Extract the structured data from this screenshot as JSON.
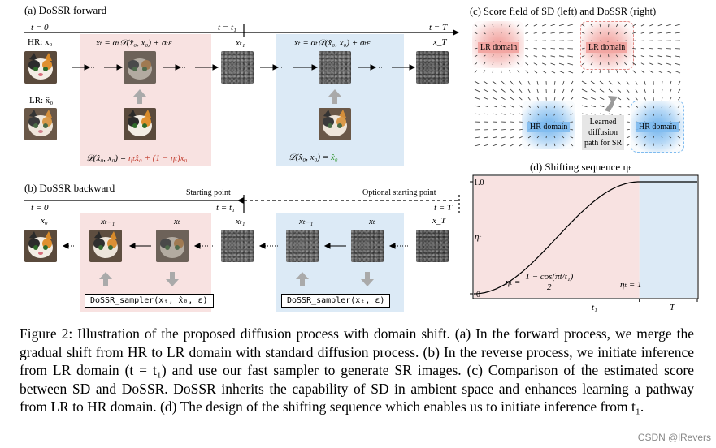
{
  "a": {
    "title": "(a) DoSSR forward",
    "t0": "t = 0",
    "tt1": "t = t₁",
    "tT": "t = T",
    "hr_label": "HR: x₀",
    "lr_label": "LR: x̂₀",
    "eq_top_left": "xₜ = αₜ𝒟(x̂₀, x₀) + σₜε",
    "eq_top_right": "xₜ = αₜ𝒟(x̂₀, x₀) + σₜε",
    "xt1": "xₜ₁",
    "xT": "x_T",
    "dots": "→ ··· →",
    "eq_bottom_left_lhs": "𝒟(x̂₀, x₀) = ",
    "eq_bottom_left_rhs": "ηₜx̂₀ + (1 − ηₜ)x₀",
    "eq_bottom_right_lhs": "𝒟(x̂₀, x₀) = ",
    "eq_bottom_right_rhs": "x̂₀"
  },
  "b": {
    "title": "(b) DoSSR backward",
    "starting": "Starting point",
    "optional": "Optional starting point",
    "t0": "t = 0",
    "tt1": "t = t₁",
    "tT": "t = T",
    "x0": "x₀",
    "xtm1_left": "xₜ₋₁",
    "xt_left": "xₜ",
    "xt1": "xₜ₁",
    "xtm1_right": "xₜ₋₁",
    "xt_right": "xₜ",
    "xT": "x_T",
    "sampler_left": "DoSSR_sampler(xₜ, x̂₀, ε)",
    "sampler_right": "DoSSR_sampler(xₜ, ε)"
  },
  "c": {
    "title": "(c) Score field of SD (left) and DoSSR (right)",
    "lr_left": "LR domain",
    "hr_left": "HR domain",
    "lr_right": "LR domain",
    "hr_right": "HR domain",
    "path_line1": "Learned",
    "path_line2": "diffusion",
    "path_line3": "path for SR"
  },
  "d": {
    "title": "(d) Shifting sequence ηₜ",
    "y_top": "1.0",
    "y_bottom": "0",
    "y_label": "ηₜ",
    "x_t1": "t₁",
    "x_T": "T",
    "eq_left_lhs": "ηₜ =",
    "eq_left_num": "1 − cos(πt/t₁)",
    "eq_left_den": "2",
    "eq_right": "ηₜ = 1"
  },
  "chart_data": {
    "type": "line",
    "title": "(d) Shifting sequence ηₜ",
    "xlabel": "",
    "ylabel": "ηₜ",
    "x_ticks": [
      "t₁",
      "T"
    ],
    "y_ticks": [
      "0",
      "1.0"
    ],
    "ylim": [
      0,
      1
    ],
    "xlim": [
      0,
      1.35
    ],
    "t1": 1.0,
    "T": 1.35,
    "series": [
      {
        "name": "ηₜ",
        "x": [
          0,
          0.1,
          0.2,
          0.3,
          0.4,
          0.5,
          0.6,
          0.7,
          0.8,
          0.9,
          1.0,
          1.1,
          1.2,
          1.35
        ],
        "values": [
          0,
          0.024,
          0.095,
          0.206,
          0.345,
          0.5,
          0.655,
          0.794,
          0.905,
          0.976,
          1.0,
          1.0,
          1.0,
          1.0
        ]
      }
    ]
  },
  "caption": "Figure 2: Illustration of the proposed diffusion process with domain shift. (a) In the forward process, we merge the gradual shift from HR to LR domain with standard diffusion process. (b) In the reverse process, we initiate inference from LR domain (t = t₁) and use our fast sampler to generate SR images. (c) Comparison of the estimated score between SD and DoSSR. DoSSR inherits the capability of SD in ambient space and enhances learning a pathway from LR to HR domain. (d) The design of the shifting sequence which enables us to initiate inference from t₁.",
  "watermark": "CSDN @lRevers",
  "colors": {
    "pink": "#f8e2e1",
    "blue": "#dceaf6",
    "red": "#c0392b",
    "green": "#3a9a3a",
    "lr_blob": "#f2a6a2",
    "hr_blob": "#7fbbef"
  }
}
